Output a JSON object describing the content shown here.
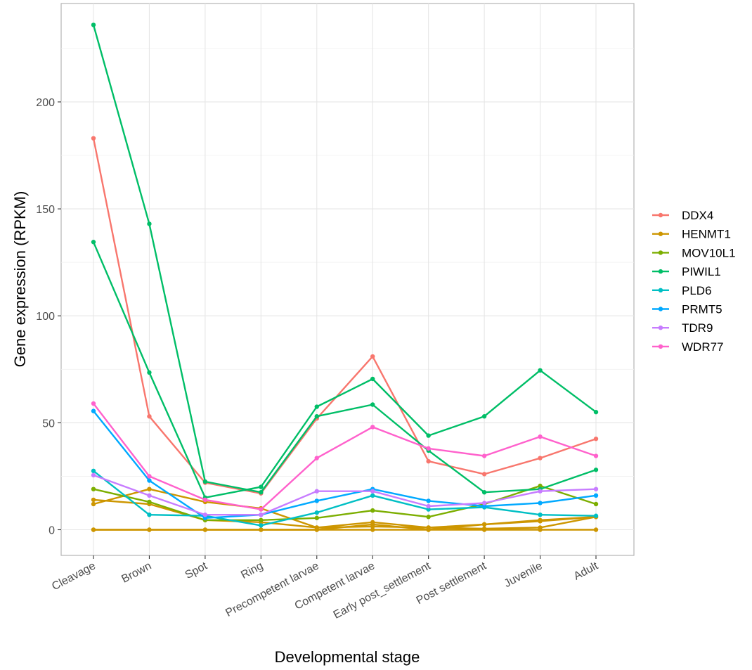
{
  "chart_data": {
    "type": "line",
    "xlabel": "Developmental stage",
    "ylabel": "Gene expression (RPKM)",
    "ylim": [
      -12,
      246
    ],
    "yticks": [
      0,
      50,
      100,
      150,
      200
    ],
    "grid": true,
    "legend_position": "right",
    "categories": [
      "Cleavage",
      "Brown",
      "Spot",
      "Ring",
      "Precompetent larvae",
      "Competent larvae",
      "Early post_settlement",
      "Post settlement",
      "Juvenile",
      "Adult"
    ],
    "series": [
      {
        "name": "DDX4",
        "color": "#F8766D",
        "values": [
          183,
          53,
          22,
          17,
          52,
          81,
          32,
          26,
          33.5,
          42.5
        ]
      },
      {
        "name": "HENMT1",
        "color": "#CD9600",
        "lines": [
          [
            14,
            12,
            4.5,
            3.5,
            1,
            1.5,
            1,
            0.5,
            1,
            6
          ],
          [
            12,
            19,
            13,
            10,
            1,
            3.5,
            1,
            2.5,
            4.5,
            6
          ],
          [
            0,
            0,
            0,
            0,
            0,
            0,
            0,
            0,
            0,
            0
          ],
          [
            0,
            0,
            0,
            0,
            0,
            2.5,
            0,
            2.5,
            4,
            6
          ]
        ]
      },
      {
        "name": "MOV10L1",
        "color": "#7CAE00",
        "values": [
          19,
          13,
          4.5,
          4.5,
          5.5,
          9,
          6,
          12,
          20.5,
          12
        ]
      },
      {
        "name": "PIWIL1",
        "color": "#00BE67",
        "lines": [
          [
            236,
            143,
            22.5,
            17.5,
            53,
            58.5,
            37,
            17.5,
            19,
            28
          ],
          [
            134.5,
            73.5,
            15,
            20,
            57.5,
            70.5,
            44,
            53,
            74.5,
            55
          ]
        ]
      },
      {
        "name": "PLD6",
        "color": "#00BFC4",
        "values": [
          27.5,
          7,
          6.5,
          2,
          8,
          16,
          9.5,
          10.5,
          7,
          6.5
        ]
      },
      {
        "name": "PRMT5",
        "color": "#00A9FF",
        "values": [
          55.5,
          23,
          5.5,
          7,
          13.5,
          19,
          13.5,
          11,
          12.5,
          16
        ]
      },
      {
        "name": "TDR9",
        "color": "#C77CFF",
        "values": [
          25.5,
          16,
          7,
          7,
          18,
          18,
          11,
          12.5,
          18,
          19
        ]
      },
      {
        "name": "WDR77",
        "color": "#FF61CC",
        "values": [
          59,
          25,
          14,
          9.5,
          33.5,
          48,
          38,
          34.5,
          43.5,
          34.5
        ]
      }
    ]
  }
}
